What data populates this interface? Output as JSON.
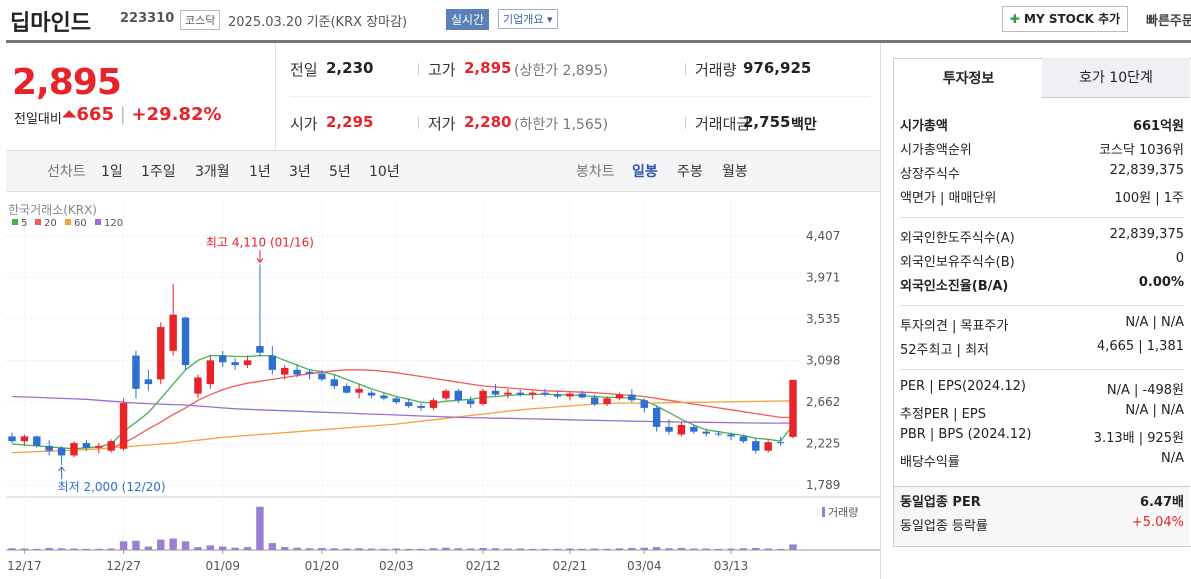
{
  "header": {
    "name": "딥마인드",
    "code": "223310",
    "market": "코스닥",
    "date": "2025.03.20 기준(KRX 장마감)",
    "realtime": "실시간",
    "overview": "기업개요",
    "mystock": "MY STOCK 추가",
    "quick": "빠른주문"
  },
  "summary": {
    "price": "2,895",
    "change_label": "전일대비",
    "change": "665",
    "rate": "+29.82%",
    "stats": [
      {
        "label": "전일",
        "value": "2,230"
      },
      {
        "label": "고가",
        "value": "2,895",
        "note": "(상한가 2,895)"
      },
      {
        "label": "거래량",
        "value": "976,925"
      },
      {
        "label": "시가",
        "value": "2,295"
      },
      {
        "label": "저가",
        "value": "2,280",
        "note": "(하한가 1,565)"
      },
      {
        "label": "거래대금",
        "value": "2,755",
        "unit": "백만"
      }
    ]
  },
  "tabs": {
    "line_label": "선차트",
    "line": [
      "1일",
      "1주일",
      "3개월",
      "1년",
      "3년",
      "5년",
      "10년"
    ],
    "candle_label": "봉차트",
    "candle": [
      "일봉",
      "주봉",
      "월봉"
    ]
  },
  "info": {
    "tabs": [
      "투자정보",
      "호가 10단계"
    ],
    "groups": [
      [
        {
          "label": "시가총액",
          "value": "661억원"
        },
        {
          "label": "시가총액순위",
          "value": "코스닥 1036위"
        },
        {
          "label": "상장주식수",
          "value": "22,839,375"
        },
        {
          "label": "액면가 | 매매단위",
          "value": "100원 | 1주"
        }
      ],
      [
        {
          "label": "외국인한도주식수(A)",
          "value": "22,839,375"
        },
        {
          "label": "외국인보유주식수(B)",
          "value": "0"
        },
        {
          "label": "외국인소진율(B/A)",
          "value": "0.00%"
        }
      ],
      [
        {
          "label": "투자의견 | 목표주가",
          "value": "N/A | N/A"
        },
        {
          "label": "52주최고 | 최저",
          "value": "4,665 | 1,381"
        }
      ],
      [
        {
          "label": "PER | EPS(2024.12)",
          "value": "N/A | -498원"
        },
        {
          "label": "추정PER | EPS",
          "value": "N/A | N/A"
        },
        {
          "label": "PBR | BPS (2024.12)",
          "value": "3.13배 | 925원"
        },
        {
          "label": "배당수익률",
          "value": "N/A"
        }
      ],
      [
        {
          "label": "동일업종 PER",
          "value": "6.47배"
        },
        {
          "label": "동일업종 등락률",
          "value": "+5.04%"
        }
      ]
    ]
  },
  "chart": {
    "type": "candlestick",
    "source": "한국거래소(KRX)",
    "volume_label": "거래량",
    "high_note": "최고 4,110 (01/16)",
    "low_note": "최저 2,000 (12/20)",
    "up_color": "#e8232a",
    "down_color": "#2f6fd0",
    "volume_color": "#9b7fd0",
    "ylim": [
      1684,
      4786
    ],
    "yticks": [
      {
        "value": 4407,
        "label": "4,407"
      },
      {
        "value": 3971,
        "label": "3,971"
      },
      {
        "value": 3535,
        "label": "3,535"
      },
      {
        "value": 3098,
        "label": "3,098"
      },
      {
        "value": 2662,
        "label": "2,662"
      },
      {
        "value": 2225,
        "label": "2,225"
      },
      {
        "value": 1789,
        "label": "1,789"
      }
    ],
    "volume_ylim": [
      0,
      7800000
    ],
    "categories": [
      null,
      "12/17",
      null,
      null,
      null,
      null,
      null,
      null,
      null,
      "12/27",
      null,
      null,
      null,
      null,
      null,
      null,
      null,
      "01/09",
      null,
      null,
      null,
      null,
      null,
      null,
      null,
      "01/20",
      null,
      null,
      null,
      null,
      null,
      "02/03",
      null,
      null,
      null,
      null,
      null,
      null,
      "02/12",
      null,
      null,
      null,
      null,
      null,
      null,
      "02/21",
      null,
      null,
      null,
      null,
      null,
      "03/04",
      null,
      null,
      null,
      null,
      null,
      null,
      "03/13",
      null,
      null,
      null,
      null,
      null
    ],
    "candles": [
      [
        2300,
        2340,
        2230,
        2250
      ],
      [
        2250,
        2320,
        2200,
        2300
      ],
      [
        2300,
        2310,
        2180,
        2200
      ],
      [
        2200,
        2260,
        2100,
        2150
      ],
      [
        2180,
        2200,
        2000,
        2100
      ],
      [
        2100,
        2250,
        2080,
        2230
      ],
      [
        2230,
        2260,
        2150,
        2180
      ],
      [
        2180,
        2230,
        2120,
        2200
      ],
      [
        2150,
        2270,
        2130,
        2250
      ],
      [
        2170,
        2700,
        2150,
        2650
      ],
      [
        3150,
        3200,
        2700,
        2800
      ],
      [
        2900,
        3000,
        2780,
        2850
      ],
      [
        2900,
        3500,
        2850,
        3450
      ],
      [
        3200,
        3900,
        3150,
        3580
      ],
      [
        3550,
        3560,
        3000,
        3050
      ],
      [
        2750,
        2950,
        2700,
        2920
      ],
      [
        2850,
        3150,
        2800,
        3100
      ],
      [
        3150,
        3200,
        3030,
        3080
      ],
      [
        3080,
        3120,
        3000,
        3050
      ],
      [
        3050,
        3150,
        3020,
        3100
      ],
      [
        3250,
        4110,
        3140,
        3180
      ],
      [
        3150,
        3250,
        2950,
        3000
      ],
      [
        2950,
        3050,
        2900,
        3020
      ],
      [
        3000,
        3060,
        2920,
        2950
      ],
      [
        2980,
        3000,
        2900,
        2960
      ],
      [
        2960,
        3000,
        2880,
        2900
      ],
      [
        2900,
        2950,
        2800,
        2830
      ],
      [
        2830,
        2860,
        2750,
        2760
      ],
      [
        2760,
        2850,
        2700,
        2800
      ],
      [
        2760,
        2780,
        2700,
        2730
      ],
      [
        2730,
        2760,
        2680,
        2700
      ],
      [
        2700,
        2720,
        2640,
        2660
      ],
      [
        2660,
        2700,
        2600,
        2620
      ],
      [
        2620,
        2650,
        2570,
        2600
      ],
      [
        2600,
        2700,
        2580,
        2680
      ],
      [
        2700,
        2800,
        2680,
        2780
      ],
      [
        2780,
        2800,
        2650,
        2680
      ],
      [
        2680,
        2720,
        2600,
        2640
      ],
      [
        2640,
        2800,
        2620,
        2780
      ],
      [
        2780,
        2850,
        2720,
        2740
      ],
      [
        2740,
        2800,
        2700,
        2760
      ],
      [
        2760,
        2790,
        2720,
        2740
      ],
      [
        2740,
        2780,
        2690,
        2760
      ],
      [
        2760,
        2800,
        2720,
        2740
      ],
      [
        2740,
        2780,
        2700,
        2720
      ],
      [
        2720,
        2760,
        2680,
        2750
      ],
      [
        2750,
        2780,
        2700,
        2710
      ],
      [
        2710,
        2740,
        2620,
        2640
      ],
      [
        2640,
        2720,
        2620,
        2700
      ],
      [
        2700,
        2760,
        2680,
        2740
      ],
      [
        2740,
        2800,
        2660,
        2680
      ],
      [
        2680,
        2700,
        2550,
        2600
      ],
      [
        2600,
        2620,
        2350,
        2400
      ],
      [
        2400,
        2480,
        2320,
        2350
      ],
      [
        2320,
        2450,
        2300,
        2420
      ],
      [
        2400,
        2420,
        2330,
        2350
      ],
      [
        2350,
        2380,
        2300,
        2330
      ],
      [
        2330,
        2360,
        2300,
        2320
      ],
      [
        2320,
        2340,
        2260,
        2300
      ],
      [
        2300,
        2320,
        2230,
        2250
      ],
      [
        2250,
        2280,
        2120,
        2150
      ],
      [
        2150,
        2260,
        2130,
        2240
      ],
      [
        2240,
        2300,
        2200,
        2230
      ],
      [
        2295,
        2895,
        2280,
        2895
      ]
    ],
    "volumes": [
      300000,
      250000,
      200000,
      350000,
      300000,
      250000,
      200000,
      200000,
      250000,
      1500000,
      1600000,
      600000,
      1800000,
      2000000,
      1500000,
      500000,
      800000,
      600000,
      400000,
      500000,
      7500000,
      1200000,
      500000,
      400000,
      300000,
      350000,
      300000,
      250000,
      300000,
      250000,
      200000,
      250000,
      200000,
      200000,
      300000,
      400000,
      300000,
      250000,
      350000,
      300000,
      250000,
      250000,
      200000,
      200000,
      200000,
      250000,
      200000,
      250000,
      200000,
      300000,
      350000,
      400000,
      500000,
      300000,
      350000,
      250000,
      250000,
      200000,
      250000,
      300000,
      350000,
      250000,
      200000,
      976925
    ],
    "series": [
      {
        "name": "5",
        "color": "#4caf50",
        "values": [
          2220,
          2210,
          2200,
          2190,
          2180,
          2170,
          2180,
          2190,
          2220,
          2350,
          2450,
          2550,
          2700,
          2850,
          3000,
          3100,
          3150,
          3150,
          3140,
          3140,
          3150,
          3150,
          3100,
          3050,
          3000,
          2980,
          2950,
          2900,
          2850,
          2800,
          2760,
          2720,
          2690,
          2660,
          2650,
          2670,
          2680,
          2690,
          2710,
          2720,
          2730,
          2740,
          2740,
          2745,
          2740,
          2735,
          2730,
          2720,
          2710,
          2710,
          2700,
          2680,
          2620,
          2550,
          2480,
          2420,
          2370,
          2350,
          2330,
          2310,
          2280,
          2270,
          2250,
          2420
        ]
      },
      {
        "name": "20",
        "color": "#ef5b5b",
        "values": [
          null,
          null,
          null,
          null,
          null,
          null,
          null,
          null,
          2180,
          2230,
          2300,
          2380,
          2450,
          2530,
          2600,
          2680,
          2740,
          2790,
          2830,
          2860,
          2880,
          2900,
          2920,
          2940,
          2960,
          2975,
          2990,
          3000,
          3000,
          2995,
          2985,
          2970,
          2950,
          2930,
          2910,
          2890,
          2870,
          2850,
          2830,
          2820,
          2810,
          2800,
          2790,
          2780,
          2775,
          2770,
          2765,
          2760,
          2750,
          2740,
          2730,
          2720,
          2700,
          2680,
          2660,
          2640,
          2620,
          2600,
          2580,
          2560,
          2540,
          2520,
          2500,
          2500
        ]
      },
      {
        "name": "60",
        "color": "#f5a142",
        "values": [
          2130,
          2135,
          2140,
          2145,
          2150,
          2155,
          2160,
          2170,
          2180,
          2190,
          2200,
          2210,
          2220,
          2230,
          2245,
          2260,
          2275,
          2290,
          2300,
          2310,
          2320,
          2330,
          2340,
          2350,
          2360,
          2370,
          2380,
          2390,
          2400,
          2410,
          2420,
          2430,
          2445,
          2460,
          2475,
          2490,
          2505,
          2520,
          2535,
          2550,
          2565,
          2580,
          2590,
          2600,
          2610,
          2620,
          2630,
          2640,
          2645,
          2650,
          2650,
          2650,
          2650,
          2655,
          2655,
          2660,
          2660,
          2662,
          2664,
          2666,
          2668,
          2670,
          2672,
          2675
        ]
      },
      {
        "name": "120",
        "color": "#9b6fd0",
        "values": [
          2720,
          2715,
          2710,
          2705,
          2700,
          2695,
          2690,
          2680,
          2670,
          2660,
          2650,
          2645,
          2640,
          2635,
          2630,
          2620,
          2610,
          2600,
          2590,
          2585,
          2580,
          2575,
          2570,
          2565,
          2560,
          2555,
          2550,
          2545,
          2540,
          2535,
          2530,
          2525,
          2520,
          2515,
          2510,
          2505,
          2500,
          2498,
          2495,
          2492,
          2490,
          2487,
          2484,
          2481,
          2478,
          2475,
          2472,
          2469,
          2466,
          2463,
          2460,
          2458,
          2456,
          2454,
          2452,
          2450,
          2448,
          2446,
          2444,
          2442,
          2441,
          2440,
          2440,
          2440
        ]
      }
    ]
  }
}
